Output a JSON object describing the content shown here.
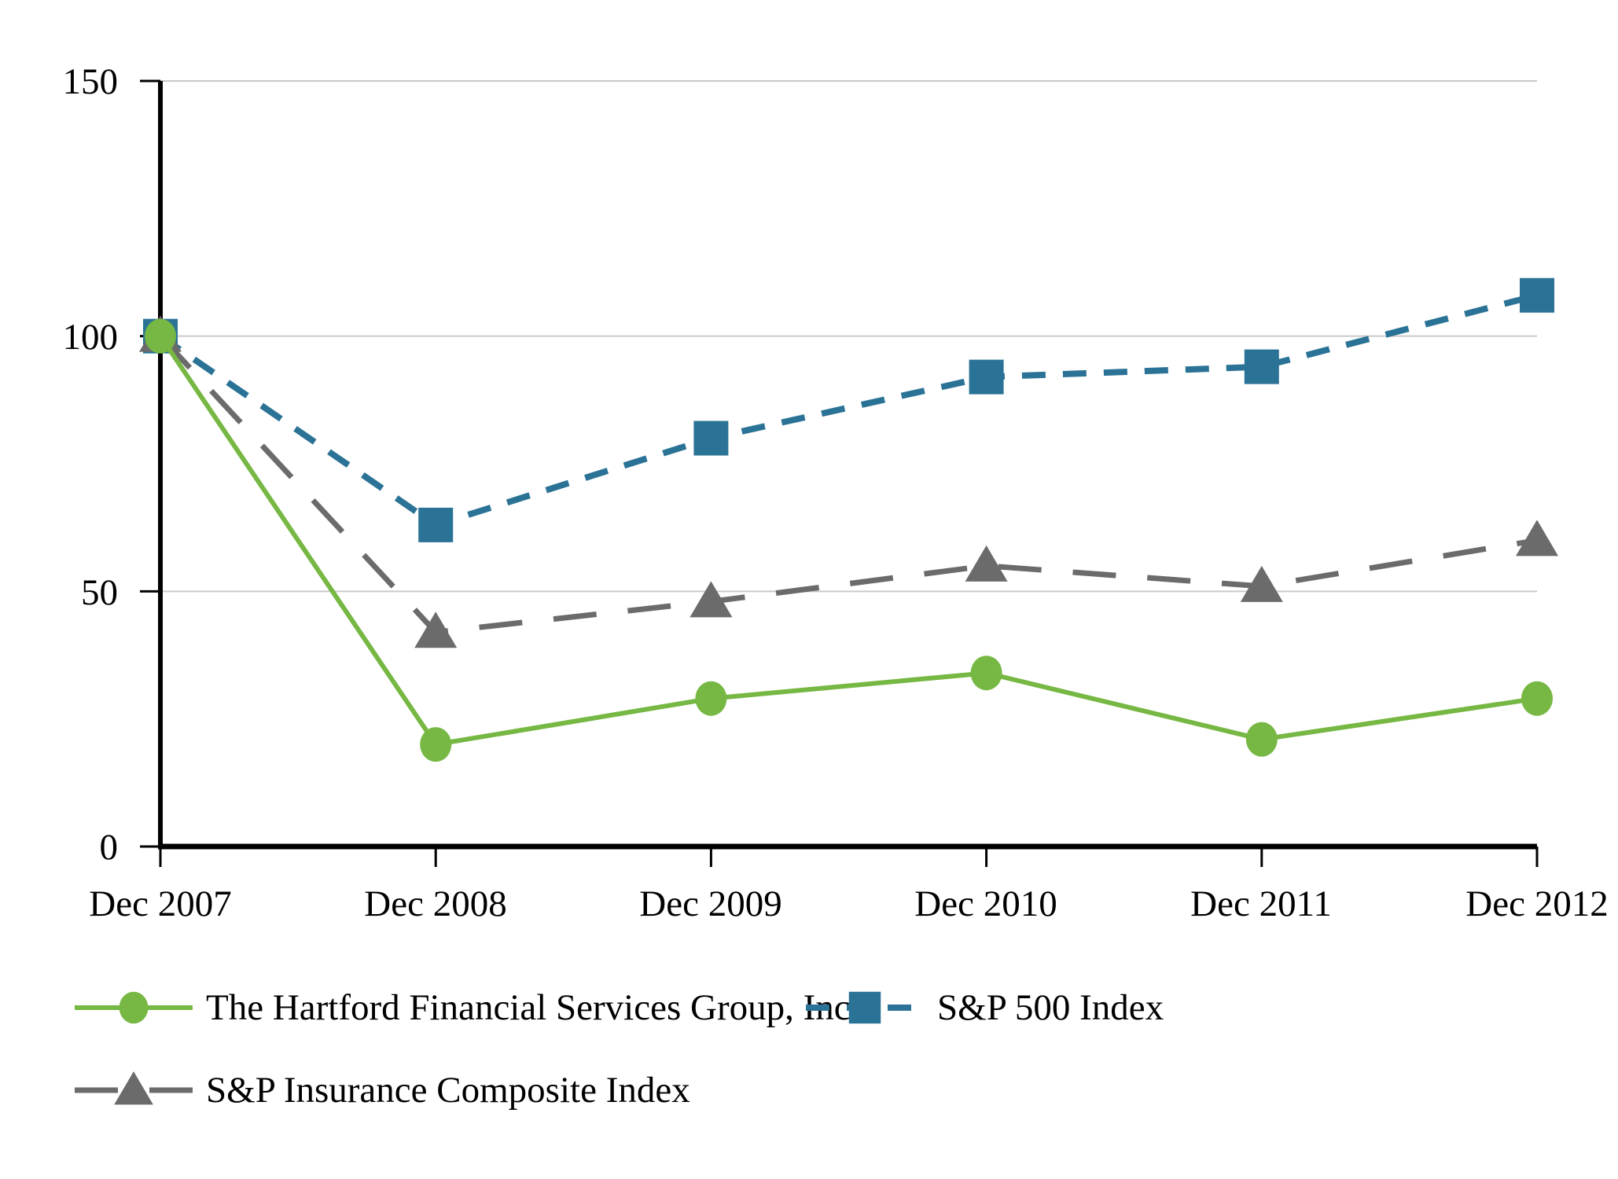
{
  "figure": {
    "background": "#ffffff",
    "text_color": "#000000",
    "gridline_color": "#c9c9c9",
    "axis_color": "#000000"
  },
  "chart_data": {
    "type": "line",
    "title": "",
    "xlabel": "",
    "ylabel": "",
    "categories": [
      "Dec 2007",
      "Dec 2008",
      "Dec 2009",
      "Dec 2010",
      "Dec 2011",
      "Dec 2012"
    ],
    "series": [
      {
        "name": "The Hartford Financial Services Group, Inc.",
        "values": [
          100,
          20,
          29,
          34,
          21,
          29
        ],
        "color": "#76b843",
        "marker": "circle",
        "line_style": "solid",
        "dash": ""
      },
      {
        "name": "S&P 500 Index",
        "values": [
          100,
          63,
          80,
          92,
          94,
          108
        ],
        "color": "#2b7396",
        "marker": "square",
        "line_style": "dashed",
        "dash": "30 22"
      },
      {
        "name": "S&P Insurance Composite Index",
        "values": [
          100,
          42,
          48,
          55,
          51,
          60
        ],
        "color": "#6b6b6b",
        "marker": "triangle",
        "line_style": "long-dashed",
        "dash": "55 40"
      }
    ],
    "ylim": [
      0,
      150
    ],
    "yticks": [
      0,
      50,
      100,
      150
    ],
    "grid": true,
    "legend_position": "bottom"
  }
}
